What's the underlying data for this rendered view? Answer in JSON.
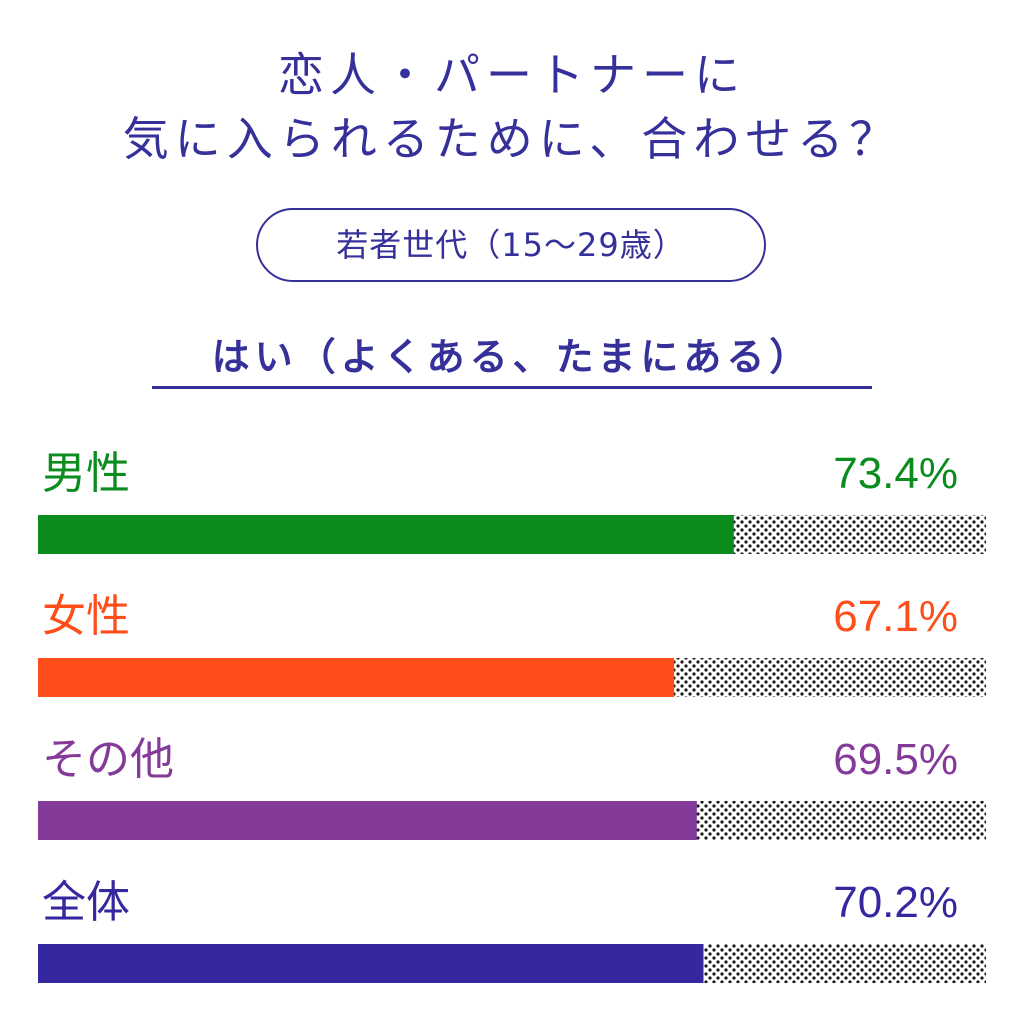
{
  "title_line1": "恋人・パートナーに",
  "title_line2": "気に入られるために、合わせる？",
  "badge": "若者世代（15〜29歳）",
  "subtitle": "はい（よくある、たまにある）",
  "chart_data": {
    "type": "bar",
    "orientation": "horizontal",
    "categories": [
      "男性",
      "女性",
      "その他",
      "全体"
    ],
    "values": [
      73.4,
      67.1,
      69.5,
      70.2
    ],
    "value_labels": [
      "73.4%",
      "67.1%",
      "69.5%",
      "70.2%"
    ],
    "colors": [
      "#0a8c1f",
      "#ff4e1a",
      "#843a98",
      "#35279f"
    ],
    "remainder_pattern": "dotted",
    "xlim": [
      0,
      100
    ],
    "grid": false,
    "legend": "none"
  }
}
